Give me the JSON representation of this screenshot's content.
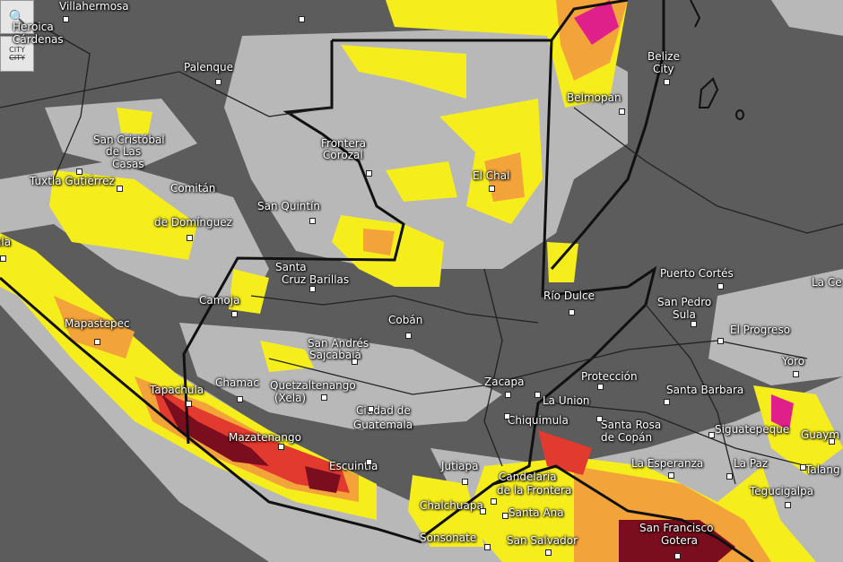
{
  "controls": {
    "zoom_icon": "magnifier-icon",
    "city_toggle_line1": "CITY",
    "city_toggle_line2": "CITY"
  },
  "colors": {
    "land": "#5c5c5c",
    "light_precip": "#b8b8b8",
    "yellow": "#f6ee1c",
    "orange": "#f2a33a",
    "red": "#e23a2e",
    "magenta": "#e0208a",
    "dark_red": "#7a0e1e",
    "borders": "#111111"
  },
  "cities": [
    {
      "name": "Villahermosa"
    },
    {
      "name": "Heroica"
    },
    {
      "name": "Cárdenas"
    },
    {
      "name": "Palenque"
    },
    {
      "name": "San Cristóbal"
    },
    {
      "name": "de Las"
    },
    {
      "name": "Casas"
    },
    {
      "name": "Tuxtla Gutiérrez"
    },
    {
      "name": "Comitán"
    },
    {
      "name": "de Domínguez"
    },
    {
      "name": "San Quintín"
    },
    {
      "name": "Frontera"
    },
    {
      "name": "Corozal"
    },
    {
      "name": "El Chal"
    },
    {
      "name": "Belize"
    },
    {
      "name": "City"
    },
    {
      "name": "Belmopan"
    },
    {
      "name": "Puerto Cortés"
    },
    {
      "name": "San Pedro"
    },
    {
      "name": "Sula"
    },
    {
      "name": "El Progreso"
    },
    {
      "name": "La Ce"
    },
    {
      "name": "Río Dulce"
    },
    {
      "name": "Santa"
    },
    {
      "name": "Cruz Barillas"
    },
    {
      "name": "Camoja"
    },
    {
      "name": "Cobán"
    },
    {
      "name": "Mapastepec"
    },
    {
      "name": "San Andrés"
    },
    {
      "name": "Sajcabajá"
    },
    {
      "name": "Chamac"
    },
    {
      "name": "Quetzaltenango"
    },
    {
      "name": "(Xela)"
    },
    {
      "name": "Ciudad de"
    },
    {
      "name": "Guatemala"
    },
    {
      "name": "Tapachula"
    },
    {
      "name": "Mazatenango"
    },
    {
      "name": "Escuintla"
    },
    {
      "name": "Jutiapa"
    },
    {
      "name": "Chalchuapa"
    },
    {
      "name": "Sonsonate"
    },
    {
      "name": "Zacapa"
    },
    {
      "name": "La Union"
    },
    {
      "name": "Chiquimula"
    },
    {
      "name": "Protección"
    },
    {
      "name": "Santa Barbara"
    },
    {
      "name": "Santa Rosa"
    },
    {
      "name": "de Copán"
    },
    {
      "name": "Siguatepeque"
    },
    {
      "name": "Guaym"
    },
    {
      "name": "La Esperanza"
    },
    {
      "name": "La Paz"
    },
    {
      "name": "Talang"
    },
    {
      "name": "Tegucigalpa"
    },
    {
      "name": "Candelaria"
    },
    {
      "name": "de la Frontera"
    },
    {
      "name": "Santa Ana"
    },
    {
      "name": "San Salvador"
    },
    {
      "name": "San Francisco"
    },
    {
      "name": "Gotera"
    },
    {
      "name": "Yoro"
    },
    {
      "name": "ala"
    }
  ]
}
